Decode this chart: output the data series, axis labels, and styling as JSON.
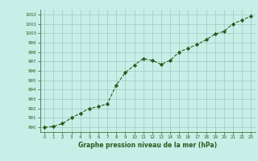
{
  "x": [
    0,
    1,
    2,
    3,
    4,
    5,
    6,
    7,
    8,
    9,
    10,
    11,
    12,
    13,
    14,
    15,
    16,
    17,
    18,
    19,
    20,
    21,
    22,
    23
  ],
  "y": [
    990.0,
    990.1,
    990.4,
    991.0,
    991.5,
    992.0,
    992.2,
    992.5,
    994.5,
    995.8,
    996.6,
    997.3,
    997.1,
    996.7,
    997.1,
    998.0,
    998.4,
    998.8,
    999.3,
    999.9,
    1000.2,
    1001.0,
    1001.4,
    1001.8
  ],
  "ylim": [
    989.5,
    1002.5
  ],
  "yticks": [
    990,
    991,
    992,
    993,
    994,
    995,
    996,
    997,
    998,
    999,
    1000,
    1001,
    1002
  ],
  "xticks": [
    0,
    1,
    2,
    3,
    4,
    5,
    6,
    7,
    8,
    9,
    10,
    11,
    12,
    13,
    14,
    15,
    16,
    17,
    18,
    19,
    20,
    21,
    22,
    23
  ],
  "line_color": "#2d5a1b",
  "marker_color": "#2d5a1b",
  "bg_color": "#c8eee8",
  "grid_color": "#9bbfb8",
  "xlabel": "Graphe pression niveau de la mer (hPa)",
  "fig_bg": "#c8eee8"
}
